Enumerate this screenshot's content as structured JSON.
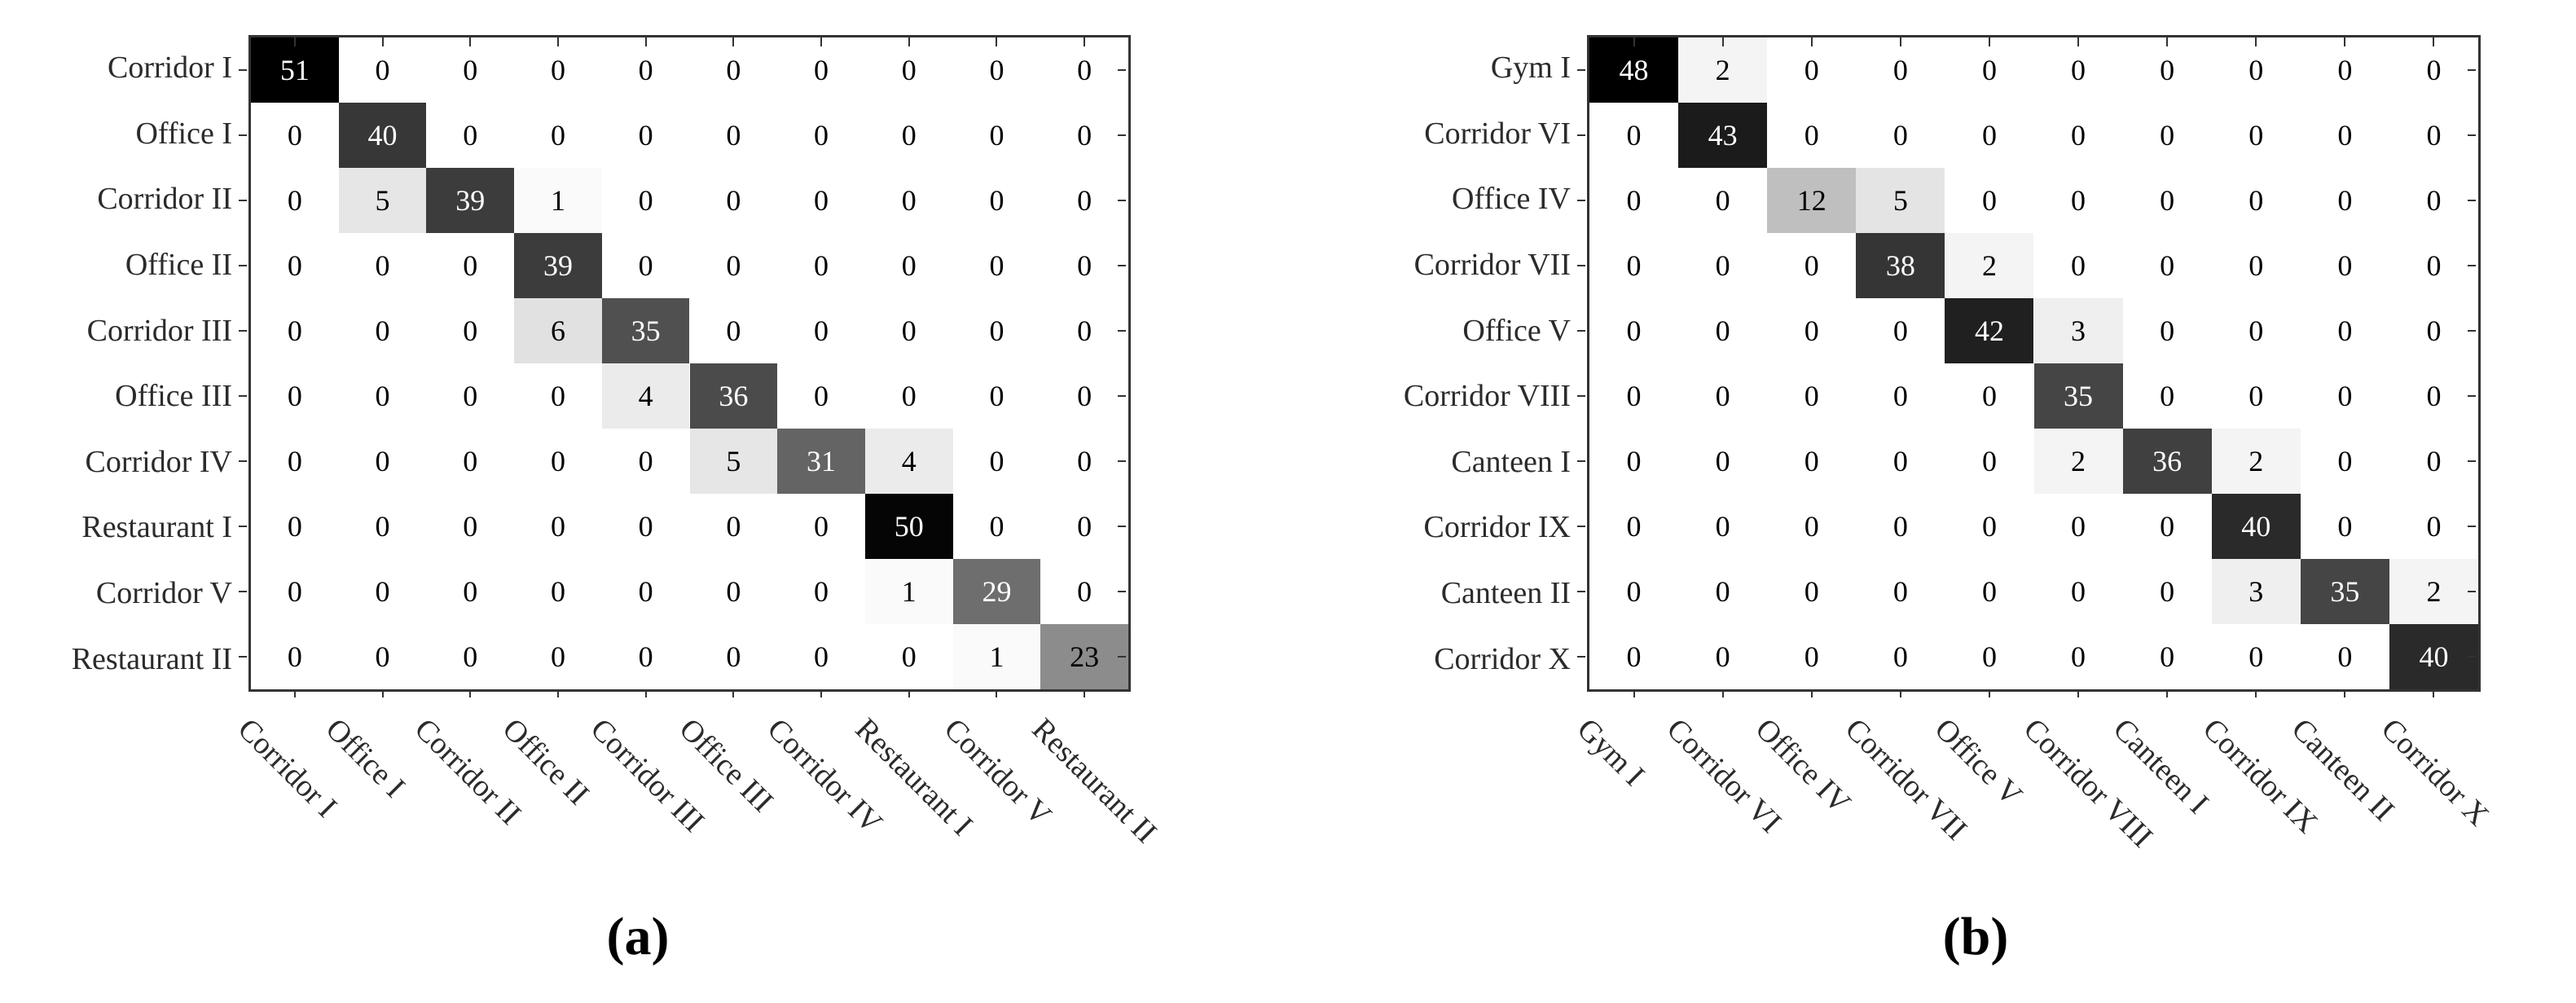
{
  "figure_type": "confusion matrices (grayscale heatmaps), two panels",
  "colors": {
    "background": "#ffffff",
    "axis_and_ticks": "#333333",
    "label_text": "#2b2b2b",
    "colormap_low": "#ffffff",
    "colormap_high": "#000000",
    "cell_text_dark_bg": "#ffffff",
    "cell_text_light_bg": "#000000"
  },
  "chart_data": [
    {
      "type": "heatmap",
      "caption": "(a)",
      "vmax": 51,
      "colormap": "white-to-black (value 0 = white, value vmax = black)",
      "cell_text_rule": "white text when background gray < 50% luminance, else black",
      "x_labels": [
        "Corridor I",
        "Office I",
        "Corridor II",
        "Office II",
        "Corridor III",
        "Office III",
        "Corridor IV",
        "Restaurant I",
        "Corridor V",
        "Restaurant II"
      ],
      "y_labels": [
        "Corridor I",
        "Office I",
        "Corridor II",
        "Office II",
        "Corridor III",
        "Office III",
        "Corridor IV",
        "Restaurant I",
        "Corridor V",
        "Restaurant II"
      ],
      "values": [
        [
          51,
          0,
          0,
          0,
          0,
          0,
          0,
          0,
          0,
          0
        ],
        [
          0,
          40,
          0,
          0,
          0,
          0,
          0,
          0,
          0,
          0
        ],
        [
          0,
          5,
          39,
          1,
          0,
          0,
          0,
          0,
          0,
          0
        ],
        [
          0,
          0,
          0,
          39,
          0,
          0,
          0,
          0,
          0,
          0
        ],
        [
          0,
          0,
          0,
          6,
          35,
          0,
          0,
          0,
          0,
          0
        ],
        [
          0,
          0,
          0,
          0,
          4,
          36,
          0,
          0,
          0,
          0
        ],
        [
          0,
          0,
          0,
          0,
          0,
          5,
          31,
          4,
          0,
          0
        ],
        [
          0,
          0,
          0,
          0,
          0,
          0,
          0,
          50,
          0,
          0
        ],
        [
          0,
          0,
          0,
          0,
          0,
          0,
          0,
          1,
          29,
          0
        ],
        [
          0,
          0,
          0,
          0,
          0,
          0,
          0,
          0,
          1,
          23
        ]
      ]
    },
    {
      "type": "heatmap",
      "caption": "(b)",
      "vmax": 48,
      "colormap": "white-to-black (value 0 = white, value vmax = black)",
      "cell_text_rule": "white text when background gray < 50% luminance, else black",
      "x_labels": [
        "Gym I",
        "Corridor VI",
        "Office IV",
        "Corridor VII",
        "Office V",
        "Corridor VIII",
        "Canteen I",
        "Corridor IX",
        "Canteen II",
        "Corridor X"
      ],
      "y_labels": [
        "Gym I",
        "Corridor VI",
        "Office IV",
        "Corridor VII",
        "Office V",
        "Corridor VIII",
        "Canteen I",
        "Corridor IX",
        "Canteen II",
        "Corridor X"
      ],
      "values": [
        [
          48,
          2,
          0,
          0,
          0,
          0,
          0,
          0,
          0,
          0
        ],
        [
          0,
          43,
          0,
          0,
          0,
          0,
          0,
          0,
          0,
          0
        ],
        [
          0,
          0,
          12,
          5,
          0,
          0,
          0,
          0,
          0,
          0
        ],
        [
          0,
          0,
          0,
          38,
          2,
          0,
          0,
          0,
          0,
          0
        ],
        [
          0,
          0,
          0,
          0,
          42,
          3,
          0,
          0,
          0,
          0
        ],
        [
          0,
          0,
          0,
          0,
          0,
          35,
          0,
          0,
          0,
          0
        ],
        [
          0,
          0,
          0,
          0,
          0,
          2,
          36,
          2,
          0,
          0
        ],
        [
          0,
          0,
          0,
          0,
          0,
          0,
          0,
          40,
          0,
          0
        ],
        [
          0,
          0,
          0,
          0,
          0,
          0,
          0,
          3,
          35,
          2
        ],
        [
          0,
          0,
          0,
          0,
          0,
          0,
          0,
          0,
          0,
          40
        ]
      ]
    }
  ]
}
